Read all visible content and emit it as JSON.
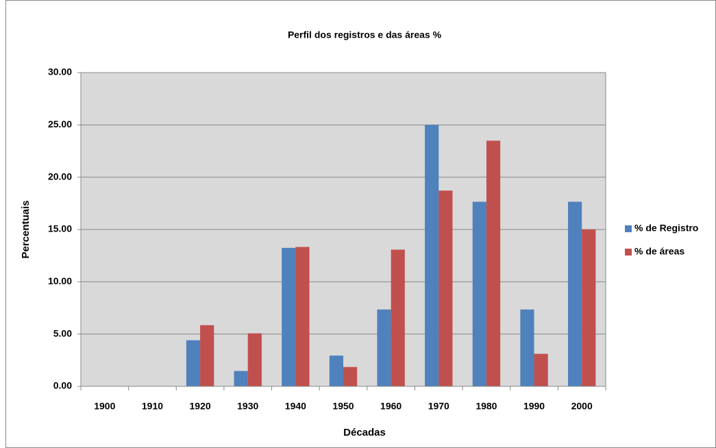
{
  "chart_data": {
    "type": "bar",
    "title": "Perfil dos registros e das áreas %",
    "x_label": "Décadas",
    "y_label": "Percentuais",
    "categories": [
      "1900",
      "1910",
      "1920",
      "1930",
      "1940",
      "1950",
      "1960",
      "1970",
      "1980",
      "1990",
      "2000"
    ],
    "series": [
      {
        "name": "% de Registro",
        "color": "#4f81bd",
        "values": [
          0,
          0,
          4.41,
          1.47,
          13.24,
          2.94,
          7.35,
          25.0,
          17.65,
          7.35,
          17.65
        ]
      },
      {
        "name": "% de áreas",
        "color": "#c0504d",
        "values": [
          0,
          0,
          5.85,
          5.07,
          13.33,
          1.85,
          13.07,
          18.72,
          23.49,
          3.11,
          15.01
        ]
      }
    ],
    "ylim": [
      0,
      30
    ],
    "yticks": [
      {
        "value": 0,
        "label": "0.00"
      },
      {
        "value": 5,
        "label": "5.00"
      },
      {
        "value": 10,
        "label": "10.00"
      },
      {
        "value": 15,
        "label": "15.00"
      },
      {
        "value": 20,
        "label": "20.00"
      },
      {
        "value": 25,
        "label": "25.00"
      },
      {
        "value": 30,
        "label": "30.00"
      }
    ],
    "grid": true,
    "legend": "right"
  }
}
